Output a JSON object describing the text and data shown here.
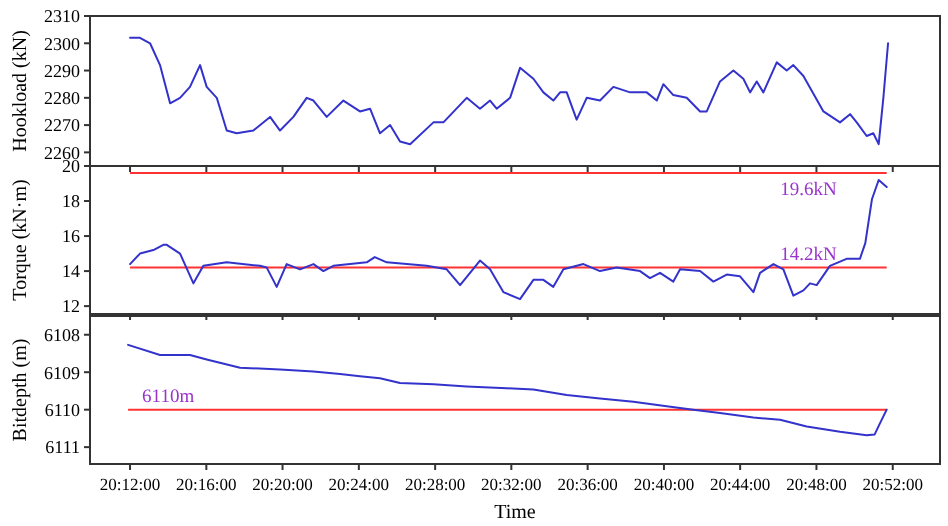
{
  "chart_data": [
    {
      "type": "line",
      "ylabel": "Hookload (kN)",
      "tick_labels": "y",
      "xlim": [
        20.165,
        20.908
      ],
      "ylim": [
        2255,
        2310
      ],
      "yticks": [
        2260,
        2270,
        2280,
        2290,
        2300,
        2310
      ],
      "xticks": [
        {
          "value": 20.2,
          "label": null
        },
        {
          "value": 20.2667,
          "label": null
        },
        {
          "value": 20.3333,
          "label": null
        },
        {
          "value": 20.4,
          "label": null
        },
        {
          "value": 20.4667,
          "label": null
        },
        {
          "value": 20.5333,
          "label": null
        },
        {
          "value": 20.6,
          "label": null
        },
        {
          "value": 20.6667,
          "label": null
        },
        {
          "value": 20.7333,
          "label": null
        },
        {
          "value": 20.8,
          "label": null
        },
        {
          "value": 20.8667,
          "label": null
        }
      ],
      "x": [
        20.2,
        20.2087,
        20.2175,
        20.2262,
        20.235,
        20.2437,
        20.2524,
        20.2612,
        20.267,
        20.2758,
        20.2845,
        20.2932,
        20.3078,
        20.3224,
        20.3311,
        20.3428,
        20.3544,
        20.3603,
        20.3719,
        20.3865,
        20.401,
        20.4098,
        20.4185,
        20.4273,
        20.436,
        20.4448,
        20.4652,
        20.4739,
        20.4943,
        20.5059,
        20.5147,
        20.5205,
        20.5322,
        20.5409,
        20.5526,
        20.5613,
        20.57,
        20.5759,
        20.5817,
        20.5904,
        20.5992,
        20.6108,
        20.6225,
        20.6371,
        20.6516,
        20.6604,
        20.6662,
        20.6749,
        20.6866,
        20.6983,
        20.7041,
        20.7157,
        20.7274,
        20.7361,
        20.742,
        20.7478,
        20.7536,
        20.7653,
        20.774,
        20.7798,
        20.7886,
        20.8061,
        20.8206,
        20.8294,
        20.8352,
        20.8439,
        20.8497,
        20.8544,
        20.8585,
        20.8626
      ],
      "series": [
        {
          "color": "#3333cc",
          "values": [
            2302,
            2302,
            2300,
            2292,
            2278,
            2280,
            2284,
            2292,
            2284,
            2280,
            2268,
            2267,
            2268,
            2273,
            2268,
            2273,
            2280,
            2279,
            2273,
            2279,
            2275,
            2276,
            2267,
            2270,
            2264,
            2263,
            2271,
            2271,
            2280,
            2276,
            2279,
            2276,
            2280,
            2291,
            2287,
            2282,
            2279,
            2282,
            2282,
            2272,
            2280,
            2279,
            2284,
            2282,
            2282,
            2279,
            2285,
            2281,
            2280,
            2275,
            2275,
            2286,
            2290,
            2287,
            2282,
            2286,
            2282,
            2293,
            2290,
            2292,
            2288,
            2275,
            2271,
            2274,
            2271,
            2266,
            2267,
            2263,
            2280,
            2300
          ]
        }
      ]
    },
    {
      "type": "line",
      "ylabel": "Torque (kN·m)",
      "tick_labels": "y",
      "xlim": [
        20.165,
        20.908
      ],
      "ylim": [
        11.55,
        20
      ],
      "yticks": [
        12,
        14,
        16,
        18,
        20
      ],
      "xticks": [
        {
          "value": 20.2,
          "label": null
        },
        {
          "value": 20.2667,
          "label": null
        },
        {
          "value": 20.3333,
          "label": null
        },
        {
          "value": 20.4,
          "label": null
        },
        {
          "value": 20.4667,
          "label": null
        },
        {
          "value": 20.5333,
          "label": null
        },
        {
          "value": 20.6,
          "label": null
        },
        {
          "value": 20.6667,
          "label": null
        },
        {
          "value": 20.7333,
          "label": null
        },
        {
          "value": 20.8,
          "label": null
        },
        {
          "value": 20.8667,
          "label": null
        }
      ],
      "ref_lines": [
        {
          "axis": "y",
          "value": 19.6,
          "label": "19.6kN",
          "color": "#ff3333"
        },
        {
          "axis": "y",
          "value": 14.2,
          "label": "14.2kN",
          "color": "#ff3333"
        }
      ],
      "x": [
        20.2,
        20.2087,
        20.2204,
        20.2291,
        20.2321,
        20.2437,
        20.2554,
        20.2641,
        20.2845,
        20.3136,
        20.3195,
        20.3282,
        20.3369,
        20.3486,
        20.3603,
        20.369,
        20.3777,
        20.4069,
        20.4139,
        20.4244,
        20.4593,
        20.4768,
        20.4885,
        20.5059,
        20.5147,
        20.5263,
        20.5409,
        20.5526,
        20.5613,
        20.57,
        20.5788,
        20.5963,
        20.6108,
        20.6254,
        20.6458,
        20.6545,
        20.6633,
        20.6749,
        20.6808,
        20.6983,
        20.7099,
        20.7216,
        20.7332,
        20.7449,
        20.7507,
        20.7624,
        20.7711,
        20.7798,
        20.7886,
        20.7944,
        20.8002,
        20.8118,
        20.8263,
        20.838,
        20.8427,
        20.8485,
        20.8544,
        20.8614
      ],
      "series": [
        {
          "color": "#3333cc",
          "values": [
            14.4,
            15.0,
            15.2,
            15.5,
            15.5,
            15.0,
            13.3,
            14.3,
            14.5,
            14.3,
            14.2,
            13.1,
            14.4,
            14.1,
            14.4,
            14.0,
            14.3,
            14.5,
            14.8,
            14.5,
            14.3,
            14.1,
            13.2,
            14.6,
            14.1,
            12.8,
            12.4,
            13.5,
            13.5,
            13.1,
            14.1,
            14.4,
            14.0,
            14.2,
            14.0,
            13.6,
            13.9,
            13.4,
            14.1,
            14.0,
            13.4,
            13.8,
            13.7,
            12.8,
            13.9,
            14.4,
            14.1,
            12.6,
            12.9,
            13.3,
            13.2,
            14.3,
            14.7,
            14.7,
            15.6,
            18.1,
            19.2,
            18.8
          ]
        }
      ]
    },
    {
      "type": "line",
      "ylabel": "Bitdepth (m)",
      "xlabel": "Time",
      "xlim": [
        20.165,
        20.908
      ],
      "ylim": [
        6111.45,
        6107.5
      ],
      "yticks": [
        6108,
        6109,
        6110,
        6111
      ],
      "xticks": [
        {
          "value": 20.2,
          "label": "20:12:00"
        },
        {
          "value": 20.2667,
          "label": "20:16:00"
        },
        {
          "value": 20.3333,
          "label": "20:20:00"
        },
        {
          "value": 20.4,
          "label": "20:24:00"
        },
        {
          "value": 20.4667,
          "label": "20:28:00"
        },
        {
          "value": 20.5333,
          "label": "20:32:00"
        },
        {
          "value": 20.6,
          "label": "20:36:00"
        },
        {
          "value": 20.6667,
          "label": "20:40:00"
        },
        {
          "value": 20.7333,
          "label": "20:44:00"
        },
        {
          "value": 20.8,
          "label": "20:48:00"
        },
        {
          "value": 20.8667,
          "label": "20:52:00"
        }
      ],
      "ref_lines": [
        {
          "axis": "y",
          "value": 6110,
          "label": "6110m",
          "color": "#ff3333"
        }
      ],
      "x": [
        20.1983,
        20.2262,
        20.2524,
        20.267,
        20.2962,
        20.3311,
        20.3603,
        20.3836,
        20.401,
        20.4185,
        20.436,
        20.4652,
        20.4943,
        20.5293,
        20.5526,
        20.5817,
        20.6108,
        20.64,
        20.6691,
        20.6924,
        20.7157,
        20.7449,
        20.7682,
        20.7915,
        20.8206,
        20.8439,
        20.8509,
        20.8556,
        20.8614
      ],
      "series": [
        {
          "color": "#3333cc",
          "values": [
            6108.27,
            6108.54,
            6108.54,
            6108.66,
            6108.88,
            6108.93,
            6108.98,
            6109.05,
            6109.11,
            6109.16,
            6109.29,
            6109.32,
            6109.38,
            6109.43,
            6109.46,
            6109.61,
            6109.7,
            6109.79,
            6109.91,
            6110.0,
            6110.09,
            6110.21,
            6110.27,
            6110.45,
            6110.59,
            6110.68,
            6110.66,
            6110.36,
            6110.0
          ]
        }
      ]
    }
  ]
}
